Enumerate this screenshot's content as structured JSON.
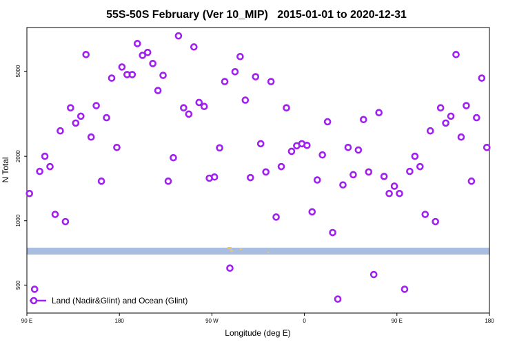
{
  "chart_data": {
    "type": "scatter",
    "title": "55S-50S February (Ver 10_MIP)   2015-01-01 to 2020-12-31",
    "x_label": "Longitude (deg E)",
    "y_label": "N Total",
    "xlim": [
      90,
      540
    ],
    "ylim": [
      370,
      8000
    ],
    "log_y": true,
    "xticks": [
      {
        "value": 90,
        "label": "90 E"
      },
      180,
      {
        "value": 270,
        "label": "90 W"
      },
      {
        "value": 360,
        "label": "0"
      },
      {
        "value": 450,
        "label": "90 E"
      },
      {
        "value": 540,
        "label": "180"
      }
    ],
    "yticks": [
      500,
      1000,
      2000,
      5000
    ],
    "legend": "bottomleft",
    "series": [
      {
        "name": "Land (Nadir&Glint) and Ocean (Glint)",
        "color": "#a020f0",
        "x": [
          92.5,
          97.5,
          102.5,
          107.5,
          112.5,
          117.5,
          122.5,
          127.5,
          132.5,
          137.5,
          142.5,
          147.5,
          152.5,
          157.5,
          162.5,
          167.5,
          172.5,
          177.5,
          182.5,
          187.5,
          192.5,
          197.5,
          202.5,
          207.5,
          212.5,
          217.5,
          222.5,
          227.5,
          232.5,
          237.5,
          242.5,
          247.5,
          252.5,
          257.5,
          262.5,
          267.5,
          272.5,
          277.5,
          282.5,
          287.5,
          292.5,
          297.5,
          302.5,
          307.5,
          312.5,
          317.5,
          322.5,
          327.5,
          332.5,
          337.5,
          342.5,
          347.5,
          352.5,
          357.5,
          362.5,
          367.5,
          372.5,
          377.5,
          382.5,
          387.5,
          392.5,
          397.5,
          402.5,
          407.5,
          412.5,
          417.5,
          422.5,
          427.5,
          432.5,
          437.5,
          442.5,
          447.5,
          452.5,
          457.5,
          462.5,
          467.5,
          472.5,
          477.5,
          482.5,
          487.5,
          492.5,
          497.5,
          502.5,
          507.5,
          512.5,
          517.5,
          522.5,
          527.5,
          532.5,
          537.5
        ],
        "values": [
          1340,
          478,
          1700,
          2000,
          1790,
          1070,
          2630,
          990,
          3370,
          2860,
          3080,
          5980,
          2460,
          3450,
          1530,
          3030,
          4640,
          2200,
          5230,
          4820,
          4820,
          6730,
          5930,
          6120,
          5430,
          4060,
          4780,
          1530,
          1970,
          7310,
          3370,
          3150,
          6490,
          3570,
          3420,
          1580,
          1600,
          2190,
          4470,
          600,
          4970,
          5850,
          3660,
          1590,
          4710,
          2290,
          1690,
          4470,
          1040,
          1790,
          3370,
          2110,
          2240,
          2290,
          2250,
          1100,
          1550,
          2030,
          2900,
          880,
          430,
          1470,
          2200,
          1640,
          2140,
          2970,
          1690,
          560,
          3200,
          1610,
          1340,
          1450,
          1340,
          478,
          1700,
          2000,
          1790,
          1070,
          2630,
          990,
          3370,
          2860,
          3080,
          5980,
          2460,
          3450,
          1530,
          3030,
          4640,
          2200
        ]
      }
    ]
  }
}
